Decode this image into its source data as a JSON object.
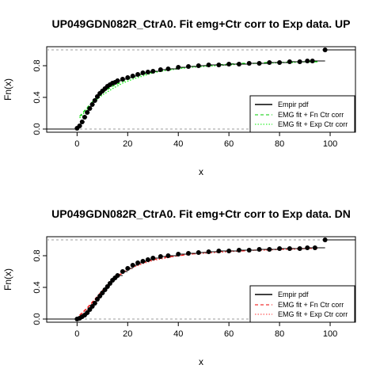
{
  "chart_data": [
    {
      "type": "line",
      "title": "UP049GDN082R_CtrA0. Fit emg+Ctr corr to Exp data. UP",
      "xlabel": "x",
      "ylabel": "Fn(x)",
      "xlim": [
        -12,
        110
      ],
      "ylim": [
        -0.04,
        1.04
      ],
      "xticks": [
        0,
        20,
        40,
        60,
        80,
        100
      ],
      "yticks": [
        0.0,
        0.4,
        0.8
      ],
      "ytick_labels": [
        "0.0",
        "0.4",
        "0.8"
      ],
      "legend_position": "bottom-right",
      "legend": [
        "Empir pdf",
        "EMG fit + Fn Ctr corr",
        "EMG fit + Exp Ctr corr"
      ],
      "colors": {
        "empirical": "#000000",
        "fit_fn": "#00cc00",
        "fit_exp": "#00ee00",
        "reference": "#9e9e9e"
      },
      "empirical_points": {
        "x": [
          0,
          1,
          2,
          3,
          4,
          5,
          6,
          7,
          8,
          9,
          10,
          11,
          12,
          13,
          14,
          15,
          16,
          18,
          20,
          22,
          24,
          26,
          28,
          30,
          33,
          36,
          40,
          44,
          48,
          52,
          56,
          60,
          64,
          68,
          72,
          76,
          80,
          84,
          88,
          91,
          93,
          98
        ],
        "y": [
          0.01,
          0.04,
          0.09,
          0.15,
          0.21,
          0.26,
          0.31,
          0.36,
          0.41,
          0.45,
          0.48,
          0.51,
          0.54,
          0.56,
          0.58,
          0.59,
          0.61,
          0.63,
          0.65,
          0.67,
          0.69,
          0.71,
          0.72,
          0.73,
          0.75,
          0.76,
          0.78,
          0.79,
          0.8,
          0.81,
          0.81,
          0.82,
          0.82,
          0.83,
          0.83,
          0.84,
          0.84,
          0.85,
          0.85,
          0.86,
          0.86,
          1.0
        ]
      },
      "series": [
        {
          "name": "EMG fit + Fn Ctr corr",
          "x": [
            1,
            4,
            7,
            10,
            14,
            18,
            22,
            26,
            30,
            35,
            40,
            45,
            50,
            55,
            60,
            65,
            70,
            75,
            80,
            85,
            90,
            95
          ],
          "y": [
            0.16,
            0.27,
            0.38,
            0.46,
            0.54,
            0.6,
            0.65,
            0.69,
            0.72,
            0.75,
            0.77,
            0.79,
            0.8,
            0.81,
            0.82,
            0.83,
            0.83,
            0.84,
            0.84,
            0.85,
            0.85,
            0.85
          ]
        },
        {
          "name": "EMG fit + Exp Ctr corr",
          "x": [
            1,
            4,
            7,
            10,
            14,
            18,
            22,
            26,
            30,
            35,
            40,
            45,
            50,
            55,
            60,
            65,
            70,
            75,
            80,
            85,
            90,
            95
          ],
          "y": [
            0.14,
            0.25,
            0.35,
            0.43,
            0.51,
            0.58,
            0.63,
            0.67,
            0.71,
            0.74,
            0.76,
            0.78,
            0.79,
            0.8,
            0.81,
            0.82,
            0.83,
            0.83,
            0.84,
            0.84,
            0.85,
            0.85
          ]
        }
      ]
    },
    {
      "type": "line",
      "title": "UP049GDN082R_CtrA0. Fit emg+Ctr corr to Exp data. DN",
      "xlabel": "x",
      "ylabel": "Fn(x)",
      "xlim": [
        -12,
        110
      ],
      "ylim": [
        -0.04,
        1.04
      ],
      "xticks": [
        0,
        20,
        40,
        60,
        80,
        100
      ],
      "yticks": [
        0.0,
        0.4,
        0.8
      ],
      "ytick_labels": [
        "0.0",
        "0.4",
        "0.8"
      ],
      "legend_position": "bottom-right",
      "legend": [
        "Empir pdf",
        "EMG fit + Fn Ctr corr",
        "EMG fit + Exp Ctr corr"
      ],
      "colors": {
        "empirical": "#000000",
        "fit_fn": "#ee0000",
        "fit_exp": "#ff3333",
        "reference": "#9e9e9e"
      },
      "empirical_points": {
        "x": [
          0,
          1,
          2,
          3,
          4,
          5,
          6,
          7,
          8,
          9,
          10,
          11,
          12,
          13,
          14,
          15,
          16,
          18,
          20,
          22,
          24,
          26,
          28,
          30,
          33,
          36,
          40,
          44,
          48,
          52,
          56,
          60,
          64,
          68,
          72,
          76,
          80,
          84,
          88,
          91,
          94,
          98
        ],
        "y": [
          0.0,
          0.01,
          0.03,
          0.05,
          0.08,
          0.12,
          0.16,
          0.2,
          0.25,
          0.29,
          0.33,
          0.37,
          0.41,
          0.45,
          0.49,
          0.52,
          0.55,
          0.6,
          0.64,
          0.68,
          0.71,
          0.73,
          0.75,
          0.77,
          0.79,
          0.8,
          0.82,
          0.83,
          0.84,
          0.85,
          0.86,
          0.86,
          0.87,
          0.87,
          0.88,
          0.88,
          0.89,
          0.89,
          0.89,
          0.9,
          0.9,
          1.0
        ]
      },
      "series": [
        {
          "name": "EMG fit + Fn Ctr corr",
          "x": [
            1,
            4,
            7,
            10,
            14,
            18,
            22,
            26,
            30,
            35,
            40,
            45,
            50,
            55,
            60,
            65,
            70,
            75,
            80,
            85,
            90,
            95
          ],
          "y": [
            0.05,
            0.14,
            0.25,
            0.36,
            0.49,
            0.59,
            0.66,
            0.71,
            0.75,
            0.78,
            0.8,
            0.82,
            0.84,
            0.85,
            0.86,
            0.86,
            0.87,
            0.88,
            0.88,
            0.89,
            0.89,
            0.9
          ]
        },
        {
          "name": "EMG fit + Exp Ctr corr",
          "x": [
            1,
            4,
            7,
            10,
            14,
            18,
            22,
            26,
            30,
            35,
            40,
            45,
            50,
            55,
            60,
            65,
            70,
            75,
            80,
            85,
            90,
            95
          ],
          "y": [
            0.04,
            0.13,
            0.24,
            0.35,
            0.48,
            0.58,
            0.65,
            0.7,
            0.74,
            0.77,
            0.8,
            0.82,
            0.83,
            0.84,
            0.85,
            0.86,
            0.87,
            0.87,
            0.88,
            0.88,
            0.89,
            0.89
          ]
        }
      ]
    }
  ]
}
